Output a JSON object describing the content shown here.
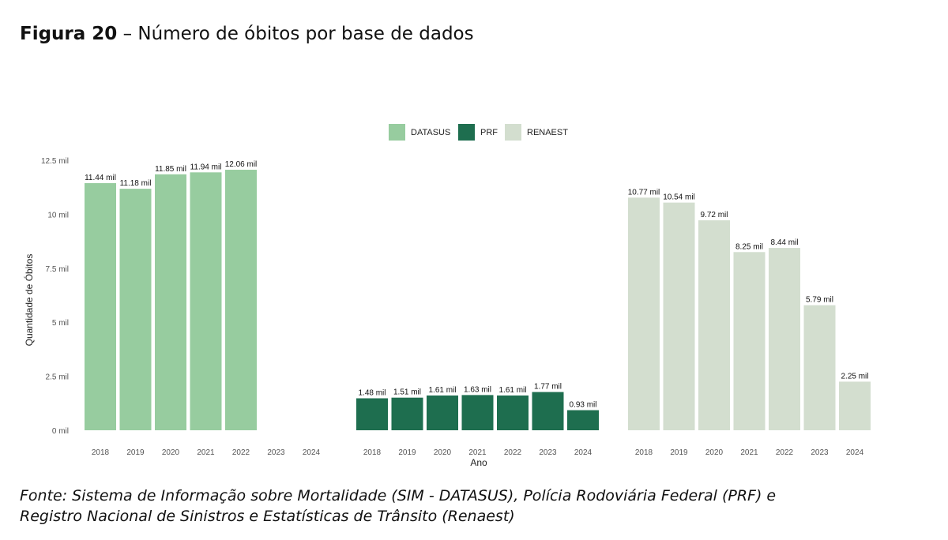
{
  "figure": {
    "label": "Figura 20",
    "caption": " – Número de óbitos por base de dados"
  },
  "source": {
    "line1": "Fonte: Sistema de Informação sobre Mortalidade (SIM - DATASUS), Polícia Rodoviária Federal (PRF) e",
    "line2": "Registro Nacional de Sinistros e Estatísticas de Trânsito (Renaest)"
  },
  "chart_data": {
    "type": "bar",
    "xlabel": "Ano",
    "ylabel": "Quantidade de Óbitos",
    "ylim": [
      0,
      12.5
    ],
    "yticks": [
      0,
      2.5,
      5,
      7.5,
      10,
      12.5
    ],
    "ytick_labels": [
      "0 mil",
      "2.5 mil",
      "5 mil",
      "7.5 mil",
      "10 mil",
      "12.5 mil"
    ],
    "grid": false,
    "legend_position": "top",
    "categories": [
      "2018",
      "2019",
      "2020",
      "2021",
      "2022",
      "2023",
      "2024"
    ],
    "series": [
      {
        "name": "DATASUS",
        "color": "#97cc9f",
        "values": [
          11.44,
          11.18,
          11.85,
          11.94,
          12.06,
          null,
          null
        ],
        "labels": [
          "11.44 mil",
          "11.18 mil",
          "11.85 mil",
          "11.94 mil",
          "12.06 mil",
          null,
          null
        ]
      },
      {
        "name": "PRF",
        "color": "#1e6e4f",
        "values": [
          1.48,
          1.51,
          1.61,
          1.63,
          1.61,
          1.77,
          0.93
        ],
        "labels": [
          "1.48 mil",
          "1.51 mil",
          "1.61 mil",
          "1.63 mil",
          "1.61 mil",
          "1.77 mil",
          "0.93 mil"
        ]
      },
      {
        "name": "RENAEST",
        "color": "#d3decf",
        "values": [
          10.77,
          10.54,
          9.72,
          8.25,
          8.44,
          5.79,
          2.25
        ],
        "labels": [
          "10.77 mil",
          "10.54 mil",
          "9.72 mil",
          "8.25 mil",
          "8.44 mil",
          "5.79 mil",
          "2.25 mil"
        ]
      }
    ]
  }
}
